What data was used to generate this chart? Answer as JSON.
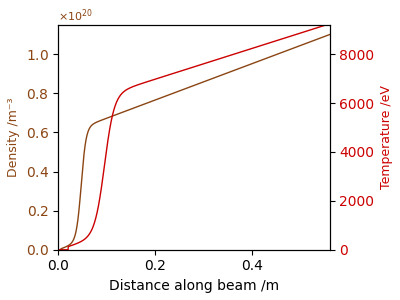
{
  "xlabel": "Distance along beam /m",
  "ylabel_left": "Density /m⁻³",
  "ylabel_right": "Temperature /eV",
  "density_color": "#8B4513",
  "temperature_color": "#CC0000",
  "xlim": [
    0.0,
    0.56
  ],
  "ylim_density": [
    0.0,
    1.15
  ],
  "ylim_temperature": [
    0.0,
    9200
  ],
  "yticks_density": [
    0.0,
    0.2,
    0.4,
    0.6,
    0.8,
    1.0
  ],
  "yticks_temperature": [
    0,
    2000,
    4000,
    6000,
    8000
  ],
  "xticks": [
    0.0,
    0.2,
    0.4
  ],
  "figsize": [
    4.0,
    3.0
  ],
  "dpi": 100
}
